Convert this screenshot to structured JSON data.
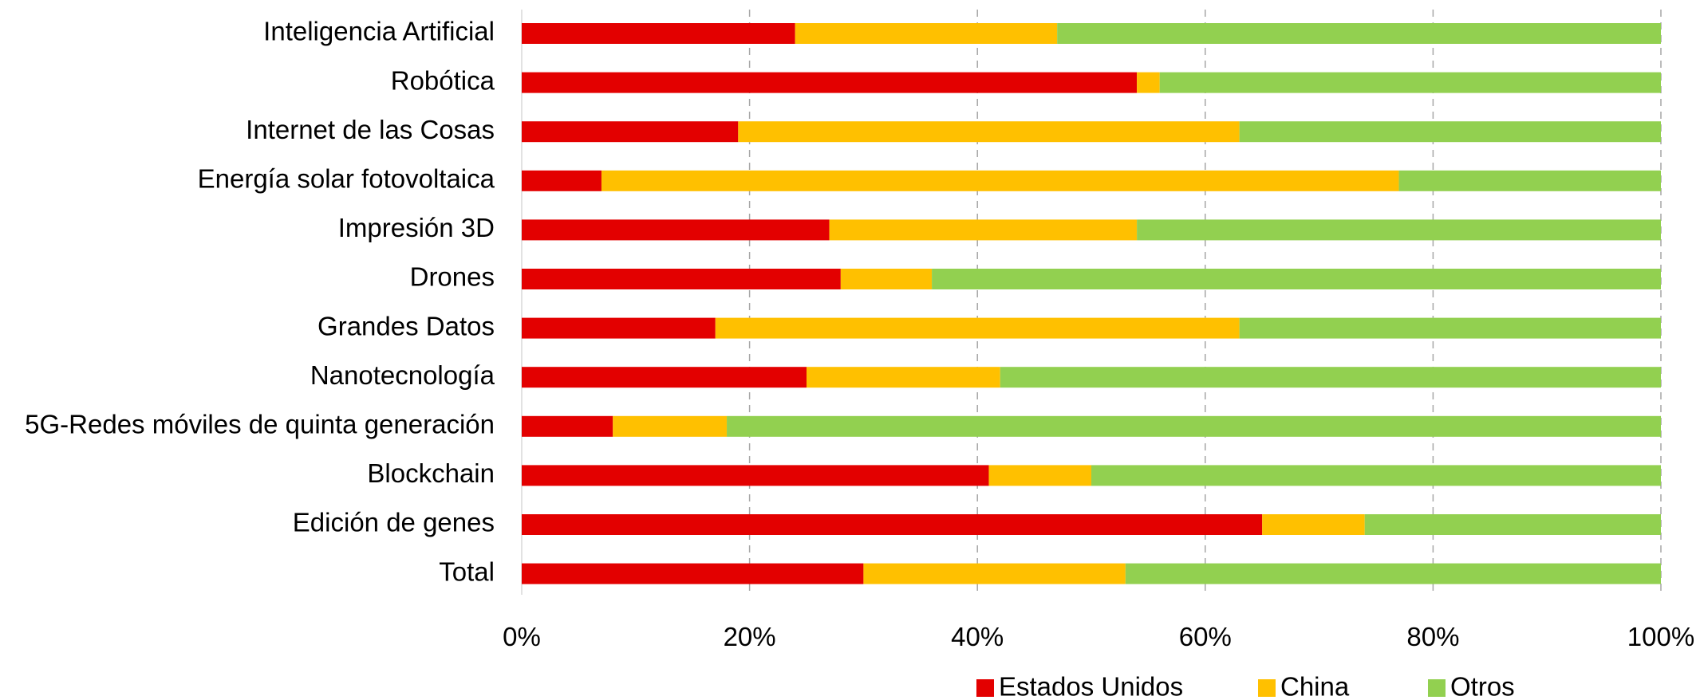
{
  "chart_data": {
    "type": "bar",
    "orientation": "horizontal",
    "stacked": "percent",
    "categories": [
      "Inteligencia Artificial",
      "Robótica",
      "Internet de las Cosas",
      "Energía solar fotovoltaica",
      "Impresión 3D",
      "Drones",
      "Grandes Datos",
      "Nanotecnología",
      "5G-Redes móviles de quinta generación",
      "Blockchain",
      "Edición de genes",
      "Total"
    ],
    "series": [
      {
        "name": "Estados Unidos",
        "color": "#e30000",
        "values": [
          24,
          54,
          19,
          7,
          27,
          28,
          17,
          25,
          8,
          41,
          65,
          30
        ]
      },
      {
        "name": "China",
        "color": "#ffc000",
        "values": [
          23,
          2,
          44,
          70,
          27,
          8,
          46,
          17,
          10,
          9,
          9,
          23
        ]
      },
      {
        "name": "Otros",
        "color": "#92d050",
        "values": [
          53,
          44,
          37,
          23,
          46,
          64,
          37,
          58,
          82,
          50,
          26,
          47
        ]
      }
    ],
    "x_ticks": [
      "0%",
      "20%",
      "40%",
      "60%",
      "80%",
      "100%"
    ],
    "xlim": [
      0,
      100
    ],
    "grid": "vertical-dashed",
    "legend_position": "bottom-right",
    "title": "",
    "xlabel": "",
    "ylabel": ""
  }
}
